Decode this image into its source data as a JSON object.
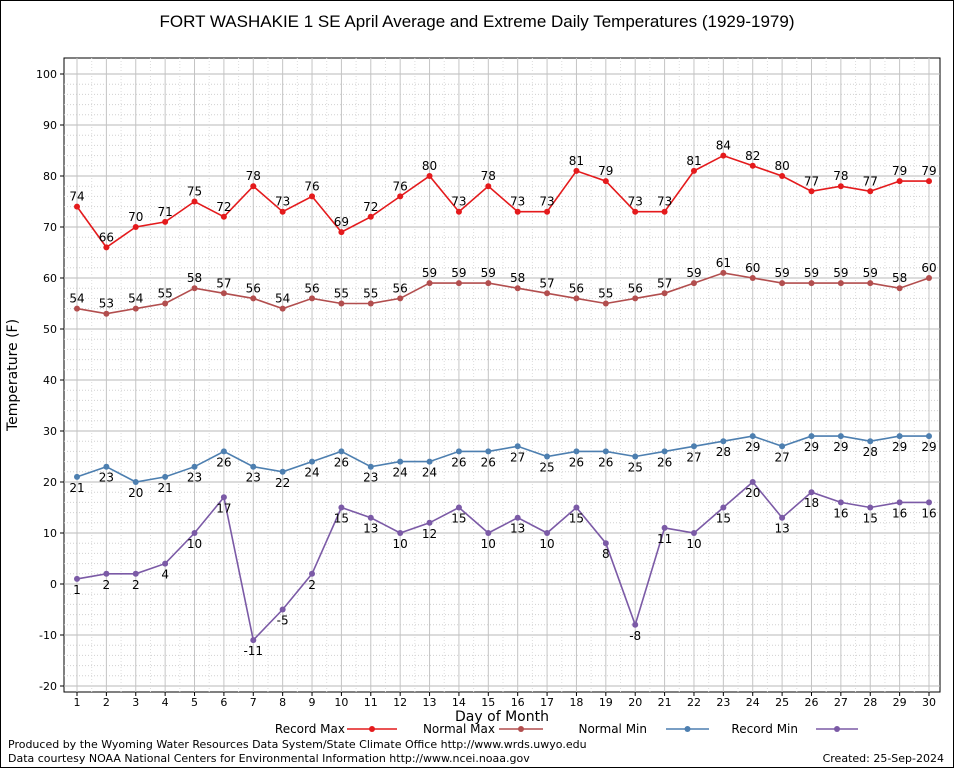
{
  "chart_data": {
    "type": "line",
    "title": "FORT WASHAKIE 1 SE April Average and Extreme Daily Temperatures (1929-1979)",
    "xlabel": "Day of Month",
    "ylabel": "Temperature (F)",
    "ylim": [
      -20,
      100
    ],
    "yticks": [
      -20,
      -10,
      0,
      10,
      20,
      30,
      40,
      50,
      60,
      70,
      80,
      90,
      100
    ],
    "x": [
      1,
      2,
      3,
      4,
      5,
      6,
      7,
      8,
      9,
      10,
      11,
      12,
      13,
      14,
      15,
      16,
      17,
      18,
      19,
      20,
      21,
      22,
      23,
      24,
      25,
      26,
      27,
      28,
      29,
      30
    ],
    "grid": true,
    "legend": "bottom",
    "series": [
      {
        "name": "Record Max",
        "color": "#e41a1c",
        "label_pos": "above",
        "values": [
          74,
          66,
          70,
          71,
          75,
          72,
          78,
          73,
          76,
          69,
          72,
          76,
          80,
          73,
          78,
          73,
          73,
          81,
          79,
          73,
          73,
          81,
          84,
          82,
          80,
          77,
          78,
          77,
          79,
          79
        ]
      },
      {
        "name": "Normal Max",
        "color": "#b24e4e",
        "label_pos": "above",
        "values": [
          54,
          53,
          54,
          55,
          58,
          57,
          56,
          54,
          56,
          55,
          55,
          56,
          59,
          59,
          59,
          58,
          57,
          56,
          55,
          56,
          57,
          59,
          61,
          60,
          59,
          59,
          59,
          59,
          58,
          60
        ]
      },
      {
        "name": "Normal Min",
        "color": "#4d7fb0",
        "label_pos": "below",
        "values": [
          21,
          23,
          20,
          21,
          23,
          26,
          23,
          22,
          24,
          26,
          23,
          24,
          24,
          26,
          26,
          27,
          25,
          26,
          26,
          25,
          26,
          27,
          28,
          29,
          27,
          29,
          29,
          28,
          29,
          29
        ]
      },
      {
        "name": "Record Min",
        "color": "#7b5aa6",
        "label_pos": "below",
        "values": [
          1,
          2,
          2,
          4,
          10,
          17,
          -11,
          -5,
          2,
          15,
          13,
          10,
          12,
          15,
          10,
          13,
          10,
          15,
          8,
          -8,
          11,
          10,
          15,
          20,
          13,
          18,
          16,
          15,
          16,
          16
        ]
      }
    ]
  },
  "footer": {
    "produced_by": "Produced by the Wyoming Water Resources Data System/State Climate Office http://www.wrds.uwyo.edu",
    "data_courtesy": "Data courtesy NOAA National Centers for Environmental Information http://www.ncei.noaa.gov",
    "created": "Created:  25-Sep-2024"
  }
}
